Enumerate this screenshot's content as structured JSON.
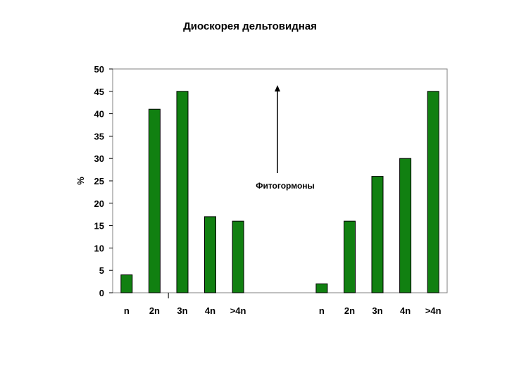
{
  "chart_data": {
    "type": "bar",
    "title": "Диоскорея дельтовидная",
    "xlabel": "",
    "ylabel": "%",
    "ylim": [
      0,
      50
    ],
    "yticks": [
      0,
      5,
      10,
      15,
      20,
      25,
      30,
      35,
      40,
      45,
      50
    ],
    "grid": false,
    "legend": "none",
    "bar_color": "#118011",
    "groups": [
      {
        "categories": [
          "n",
          "2n",
          "3n",
          "4n",
          ">4n"
        ],
        "values": [
          4,
          41,
          45,
          17,
          16
        ]
      },
      {
        "categories": [
          "n",
          "2n",
          "3n",
          "4n",
          ">4n"
        ],
        "values": [
          2,
          16,
          26,
          30,
          45
        ]
      }
    ],
    "annotations": [
      {
        "text": "Фитогормоны",
        "arrow": "up"
      }
    ]
  }
}
